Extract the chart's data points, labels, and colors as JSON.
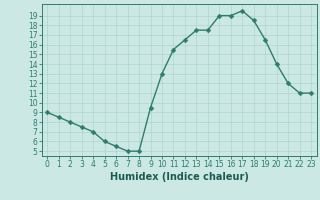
{
  "x": [
    0,
    1,
    2,
    3,
    4,
    5,
    6,
    7,
    8,
    9,
    10,
    11,
    12,
    13,
    14,
    15,
    16,
    17,
    18,
    19,
    20,
    21,
    22,
    23
  ],
  "y": [
    9,
    8.5,
    8,
    7.5,
    7,
    6,
    5.5,
    5,
    5,
    9.5,
    13,
    15.5,
    16.5,
    17.5,
    17.5,
    19,
    19,
    19.5,
    18.5,
    16.5,
    14,
    12,
    11,
    11
  ],
  "line_color": "#2d7d6e",
  "marker_color": "#2d7d6e",
  "bg_color": "#cce8e4",
  "grid_color": "#aed4cf",
  "xlabel": "Humidex (Indice chaleur)",
  "ylim": [
    4.5,
    20.2
  ],
  "xlim": [
    -0.5,
    23.5
  ],
  "yticks": [
    5,
    6,
    7,
    8,
    9,
    10,
    11,
    12,
    13,
    14,
    15,
    16,
    17,
    18,
    19
  ],
  "xticks": [
    0,
    1,
    2,
    3,
    4,
    5,
    6,
    7,
    8,
    9,
    10,
    11,
    12,
    13,
    14,
    15,
    16,
    17,
    18,
    19,
    20,
    21,
    22,
    23
  ],
  "tick_color": "#2d7d6e",
  "label_color": "#1a5c52",
  "font_size": 5.5,
  "xlabel_fontsize": 7,
  "line_width": 1.0,
  "marker_size": 2.5
}
